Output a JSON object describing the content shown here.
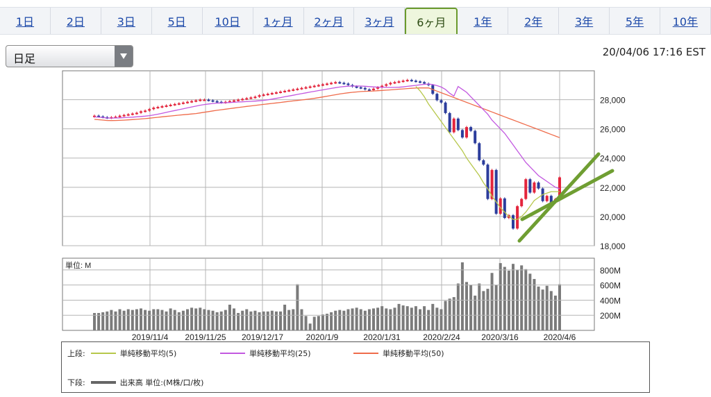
{
  "tabs": [
    "1日",
    "2日",
    "3日",
    "5日",
    "10日",
    "1ヶ月",
    "2ヶ月",
    "3ヶ月",
    "6ヶ月",
    "1年",
    "2年",
    "3年",
    "5年",
    "10年"
  ],
  "active_tab": "6ヶ月",
  "period_select": {
    "value": "日足"
  },
  "timestamp": "20/04/06 17:16 EST",
  "legend": {
    "upper_label": "上段:",
    "lower_label": "下段:",
    "ma5": "単純移動平均(5)",
    "ma25": "単純移動平均(25)",
    "ma50": "単純移動平均(50)",
    "volume": "出来高 単位:(M株/口/枚)"
  },
  "colors": {
    "up": "#e3253c",
    "down": "#2c3d9c",
    "ma5": "#b6c74a",
    "ma25": "#c258e0",
    "ma50": "#ef6b4a",
    "volume": "#7b7b7b",
    "annotation": "#6f9e32",
    "grid": "#b5b5b5"
  },
  "chart_data": [
    {
      "type": "candlestick",
      "ylim": [
        18000,
        29500
      ],
      "yticks": [
        "28,000",
        "26,000",
        "24,000",
        "22,000",
        "20,000",
        "18,000"
      ],
      "xticks": [
        "2019/11/4",
        "2019/11/25",
        "2019/12/17",
        "2020/1/9",
        "2020/1/31",
        "2020/2/24",
        "2020/3/16",
        "2020/4/6"
      ],
      "close": [
        26900,
        26850,
        26800,
        26750,
        26800,
        26830,
        26900,
        26950,
        27000,
        27050,
        27100,
        27200,
        27250,
        27350,
        27450,
        27500,
        27550,
        27600,
        27650,
        27700,
        27750,
        27800,
        27850,
        27900,
        27950,
        28000,
        28000,
        27950,
        27900,
        27850,
        27800,
        27850,
        27900,
        27950,
        28000,
        28050,
        28100,
        28150,
        28200,
        28300,
        28350,
        28400,
        28450,
        28500,
        28550,
        28600,
        28650,
        28700,
        28750,
        28800,
        28850,
        28900,
        28950,
        29000,
        29050,
        29100,
        29150,
        29200,
        29150,
        29100,
        29000,
        28900,
        28850,
        28800,
        28700,
        28650,
        28750,
        28850,
        28950,
        29050,
        29150,
        29200,
        29250,
        29300,
        29350,
        29300,
        29250,
        29200,
        29100,
        28992,
        28400,
        27960,
        27800,
        27081,
        25766,
        26703,
        25917,
        25409,
        26121,
        25864,
        25018,
        23851,
        23553,
        21200,
        23185,
        20188,
        21237,
        19898,
        20087,
        19174,
        20704,
        21200,
        22552,
        21636,
        22327,
        21917,
        21052,
        21413,
        20943,
        21200,
        22680
      ],
      "ma5": [
        28900,
        28600,
        28200,
        27700,
        27300,
        26900,
        26500,
        26100,
        25700,
        25300,
        24900,
        24500,
        24000,
        23600,
        23200,
        22800,
        22300,
        21900,
        21400,
        21000,
        20600,
        20300,
        20000,
        19800,
        19800,
        20000,
        20300,
        20700,
        21100,
        21300,
        21500,
        21600,
        21700,
        21700,
        21700
      ],
      "ma25": [
        28900,
        28700,
        28500,
        28200,
        27900,
        27600,
        27300,
        27000,
        26600,
        26300,
        26000,
        25700,
        25300,
        24900,
        24500,
        24100,
        23700,
        23400,
        23100,
        22800,
        22600,
        22400,
        22200,
        22000,
        21900
      ],
      "ma50_end": 25400,
      "volume_m": {
        "ylim": [
          0,
          900
        ],
        "yticks": [
          "800M",
          "600M",
          "400M",
          "200M"
        ],
        "unit_label": "単位: M",
        "values": [
          230,
          230,
          240,
          250,
          270,
          250,
          280,
          260,
          280,
          270,
          280,
          290,
          270,
          260,
          280,
          280,
          270,
          250,
          290,
          270,
          240,
          260,
          280,
          300,
          290,
          300,
          280,
          270,
          260,
          240,
          250,
          270,
          340,
          290,
          230,
          260,
          280,
          250,
          260,
          240,
          250,
          250,
          260,
          250,
          250,
          340,
          270,
          280,
          610,
          280,
          190,
          90,
          180,
          190,
          210,
          220,
          240,
          260,
          270,
          260,
          280,
          290,
          300,
          280,
          260,
          280,
          290,
          300,
          320,
          290,
          280,
          300,
          350,
          330,
          320,
          300,
          320,
          280,
          320,
          270,
          350,
          300,
          280,
          390,
          420,
          440,
          620,
          900,
          640,
          600,
          460,
          620,
          520,
          550,
          760,
          600,
          890,
          840,
          790,
          880,
          800,
          860,
          810,
          750,
          680,
          580,
          540,
          590,
          520,
          460,
          610
        ]
      }
    }
  ]
}
